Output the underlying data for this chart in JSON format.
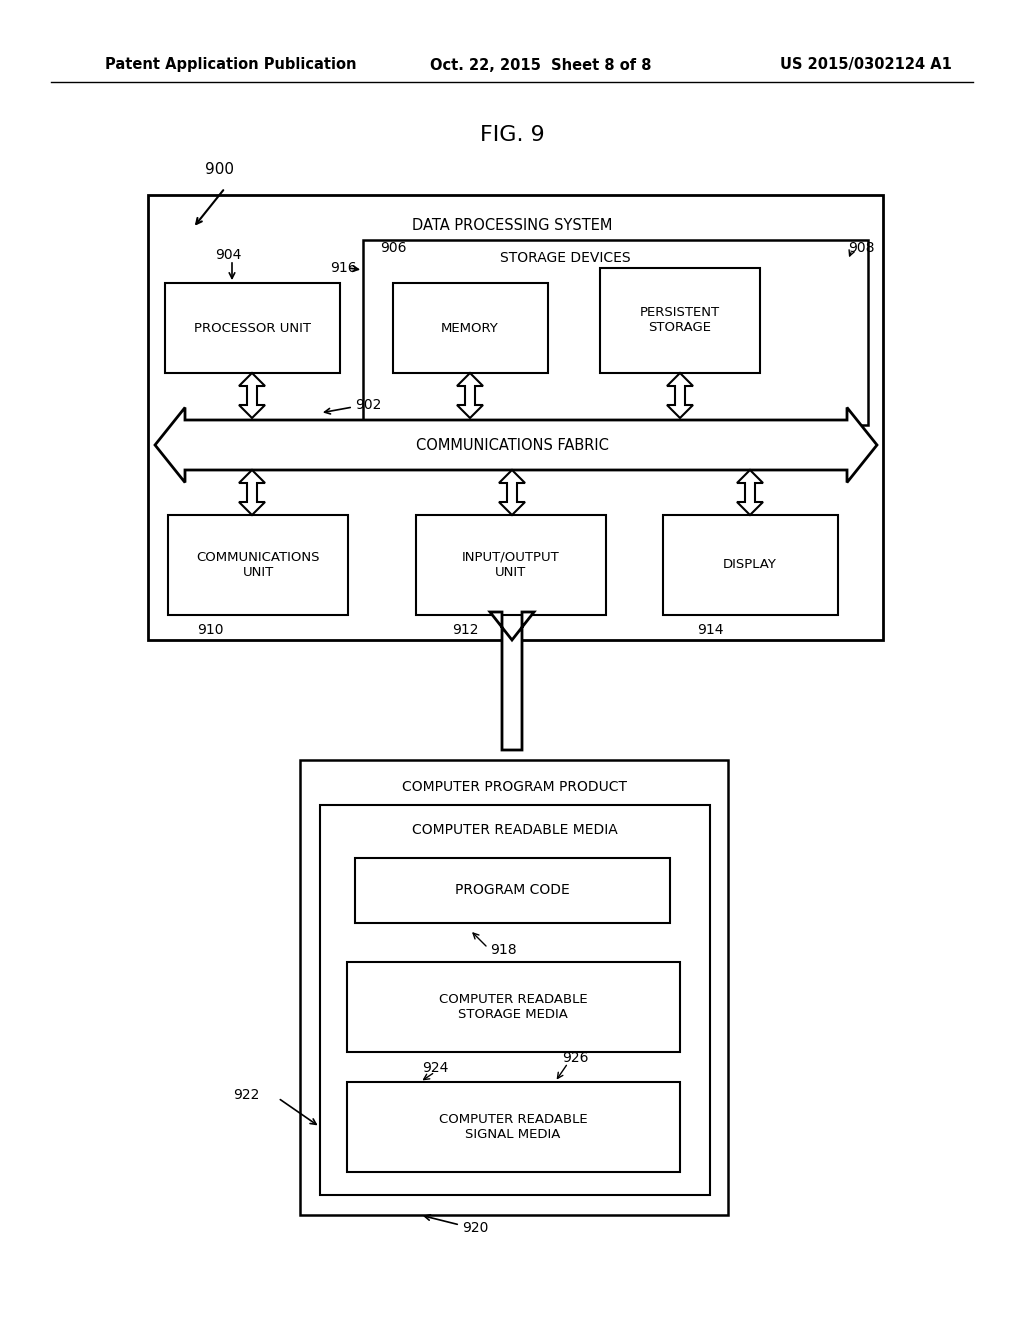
{
  "title": "FIG. 9",
  "header_left": "Patent Application Publication",
  "header_center": "Oct. 22, 2015  Sheet 8 of 8",
  "header_right": "US 2015/0302124 A1",
  "bg_color": "#ffffff",
  "fig_label": "900",
  "label_902": "902",
  "label_904": "904",
  "label_906": "906",
  "label_908": "908",
  "label_910": "910",
  "label_912": "912",
  "label_914": "914",
  "label_916": "916",
  "label_918": "918",
  "label_920": "920",
  "label_922": "922",
  "label_924": "924",
  "label_926": "926",
  "text_dps": "DATA PROCESSING SYSTEM",
  "text_storage_devices": "STORAGE DEVICES",
  "text_processor_unit": "PROCESSOR UNIT",
  "text_memory": "MEMORY",
  "text_persistent_storage": "PERSISTENT\nSTORAGE",
  "text_comm_fabric": "COMMUNICATIONS FABRIC",
  "text_comm_unit": "COMMUNICATIONS\nUNIT",
  "text_io_unit": "INPUT/OUTPUT\nUNIT",
  "text_display": "DISPLAY",
  "text_cpp": "COMPUTER PROGRAM PRODUCT",
  "text_crm": "COMPUTER READABLE MEDIA",
  "text_program_code": "PROGRAM CODE",
  "text_crsm": "COMPUTER READABLE\nSTORAGE MEDIA",
  "text_crsigm": "COMPUTER READABLE\nSIGNAL MEDIA"
}
